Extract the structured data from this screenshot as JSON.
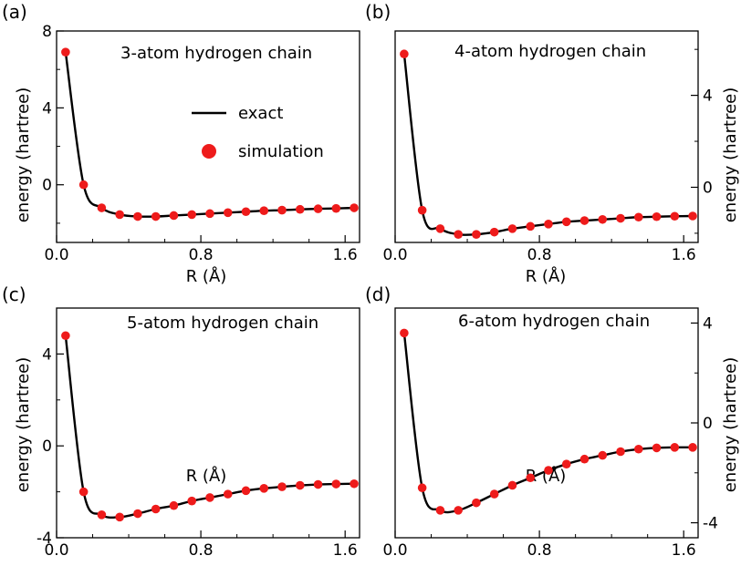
{
  "legend": {
    "exact": "exact",
    "simulation": "simulation"
  },
  "chart_data": [
    {
      "panel": "(a)",
      "type": "line",
      "title": "3-atom hydrogen chain",
      "xlabel": "R (Å)",
      "ylabel": "energy (hartree)",
      "yaxis_side": "left",
      "xlim": [
        0.0,
        1.68
      ],
      "ylim": [
        -3.0,
        8.0
      ],
      "xticks": [
        0.0,
        0.8,
        1.6
      ],
      "xtick_labels": [
        "0.0",
        "0.8",
        "1.6"
      ],
      "yticks": [
        0,
        4,
        8
      ],
      "ytick_labels": [
        "0",
        "4",
        "8"
      ],
      "grid": false,
      "legend": "center-right",
      "series": [
        {
          "name": "simulation",
          "x": [
            0.05,
            0.15,
            0.25,
            0.35,
            0.45,
            0.55,
            0.65,
            0.75,
            0.85,
            0.95,
            1.05,
            1.15,
            1.25,
            1.35,
            1.45,
            1.55,
            1.65
          ],
          "y": [
            6.9,
            0.0,
            -1.2,
            -1.55,
            -1.65,
            -1.65,
            -1.6,
            -1.55,
            -1.5,
            -1.45,
            -1.4,
            -1.35,
            -1.32,
            -1.28,
            -1.25,
            -1.23,
            -1.2
          ]
        }
      ]
    },
    {
      "panel": "(b)",
      "type": "line",
      "title": "4-atom hydrogen chain",
      "xlabel": "R (Å)",
      "ylabel": "energy (hartree)",
      "yaxis_side": "right",
      "xlim": [
        0.0,
        1.68
      ],
      "ylim": [
        -2.4,
        6.8
      ],
      "xticks": [
        0.0,
        0.8,
        1.6
      ],
      "xtick_labels": [
        "0.0",
        "0.8",
        "1.6"
      ],
      "yticks": [
        0,
        4
      ],
      "ytick_labels": [
        "0",
        "4"
      ],
      "grid": false,
      "series": [
        {
          "name": "simulation",
          "x": [
            0.05,
            0.15,
            0.25,
            0.35,
            0.45,
            0.55,
            0.65,
            0.75,
            0.85,
            0.95,
            1.05,
            1.15,
            1.25,
            1.35,
            1.45,
            1.55,
            1.65
          ],
          "y": [
            5.8,
            -1.0,
            -1.8,
            -2.05,
            -2.05,
            -1.95,
            -1.8,
            -1.7,
            -1.6,
            -1.5,
            -1.45,
            -1.4,
            -1.35,
            -1.3,
            -1.28,
            -1.26,
            -1.25
          ]
        }
      ]
    },
    {
      "panel": "(c)",
      "type": "line",
      "title": "5-atom hydrogen chain",
      "xlabel": "R (Å)",
      "ylabel": "energy (hartree)",
      "yaxis_side": "left",
      "xlim": [
        0.0,
        1.68
      ],
      "ylim": [
        -4.0,
        6.0
      ],
      "xticks": [
        0.0,
        0.8,
        1.6
      ],
      "xtick_labels": [
        "0.0",
        "0.8",
        "1.6"
      ],
      "yticks": [
        -4,
        0,
        4
      ],
      "ytick_labels": [
        "-4",
        "0",
        "4"
      ],
      "grid": false,
      "series": [
        {
          "name": "simulation",
          "x": [
            0.05,
            0.15,
            0.25,
            0.35,
            0.45,
            0.55,
            0.65,
            0.75,
            0.85,
            0.95,
            1.05,
            1.15,
            1.25,
            1.35,
            1.45,
            1.55,
            1.65
          ],
          "y": [
            4.8,
            -2.0,
            -3.0,
            -3.1,
            -2.95,
            -2.75,
            -2.6,
            -2.4,
            -2.25,
            -2.1,
            -1.95,
            -1.85,
            -1.78,
            -1.72,
            -1.68,
            -1.66,
            -1.65
          ]
        }
      ]
    },
    {
      "panel": "(d)",
      "type": "line",
      "title": "6-atom hydrogen chain",
      "xlabel": "R (Å)",
      "ylabel": "energy (hartree)",
      "yaxis_side": "right",
      "xlim": [
        0.0,
        1.68
      ],
      "ylim": [
        -4.6,
        4.6
      ],
      "xticks": [
        0.0,
        0.8,
        1.6
      ],
      "xtick_labels": [
        "0.0",
        "0.8",
        "1.6"
      ],
      "yticks": [
        -4,
        0,
        4
      ],
      "ytick_labels": [
        "-4",
        "0",
        "4"
      ],
      "grid": false,
      "series": [
        {
          "name": "simulation",
          "x": [
            0.05,
            0.15,
            0.25,
            0.35,
            0.45,
            0.55,
            0.65,
            0.75,
            0.85,
            0.95,
            1.05,
            1.15,
            1.25,
            1.35,
            1.45,
            1.55,
            1.65
          ],
          "y": [
            3.6,
            -2.6,
            -3.5,
            -3.5,
            -3.2,
            -2.85,
            -2.5,
            -2.2,
            -1.9,
            -1.65,
            -1.45,
            -1.3,
            -1.15,
            -1.05,
            -1.0,
            -0.98,
            -0.98
          ]
        }
      ]
    }
  ]
}
